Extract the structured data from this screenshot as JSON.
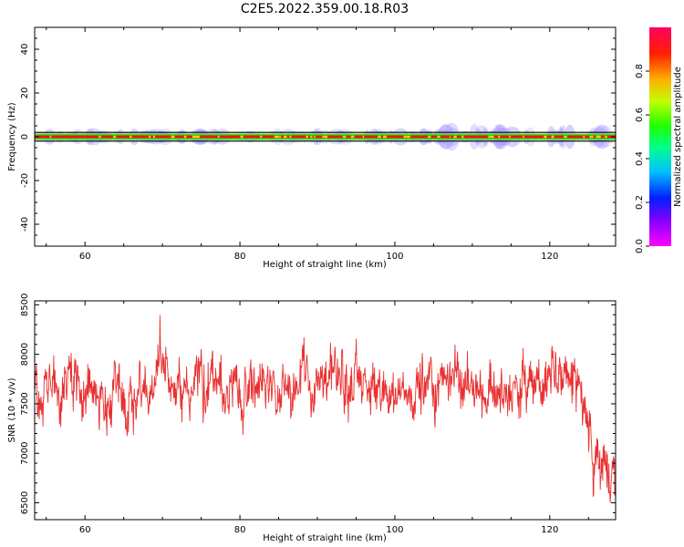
{
  "title": "C2E5.2022.359.00.18.R03",
  "colors": {
    "snr_line": "#e83030",
    "spectro_center": "#ff1010",
    "spectro_band1": "#20ee20",
    "spectro_band2": "#101010",
    "halo": "#b0a0ff"
  },
  "chart_data": [
    {
      "type": "heatmap",
      "title": "",
      "xlabel": "Height of straight line (km)",
      "ylabel": "Frequency (Hz)",
      "xlim": [
        53.5,
        128.5
      ],
      "ylim": [
        -50,
        50
      ],
      "xticks": [
        60,
        80,
        100,
        120
      ],
      "yticks": [
        -40,
        -20,
        0,
        20,
        40
      ],
      "colorbar": {
        "label": "Normalized spectral amplitude",
        "range": [
          0,
          1
        ],
        "ticks": [
          "0.0",
          "0.2",
          "0.4",
          "0.6",
          "0.8"
        ],
        "colormap": "gist_rainbow"
      },
      "band_center_hz": 0,
      "band_halfwidth_hz": 2,
      "grid": false
    },
    {
      "type": "line",
      "title": "",
      "xlabel": "Height of straight line (km)",
      "ylabel": "SNR (10 * v/v)",
      "xlim": [
        53.5,
        128.5
      ],
      "ylim": [
        6330,
        8540
      ],
      "xticks": [
        60,
        80,
        100,
        120
      ],
      "yticks": [
        6500,
        7000,
        7500,
        8000,
        8500
      ],
      "grid": false,
      "series": [
        {
          "x": [
            53.5,
            55,
            57,
            60,
            63,
            66,
            69,
            72,
            75,
            78,
            81,
            84,
            87,
            90,
            93,
            96,
            99,
            102,
            105,
            108,
            111,
            114,
            117,
            120,
            122,
            123.5,
            124.5,
            125.5,
            126.5,
            127.5,
            128.5
          ],
          "values": [
            7700,
            7550,
            7600,
            7650,
            7600,
            7650,
            7700,
            7650,
            7650,
            7600,
            7700,
            7700,
            7750,
            7700,
            7750,
            7650,
            7600,
            7650,
            7700,
            7750,
            7650,
            7600,
            7650,
            7700,
            7700,
            7750,
            7500,
            7000,
            6850,
            6800,
            6750
          ]
        }
      ]
    }
  ]
}
